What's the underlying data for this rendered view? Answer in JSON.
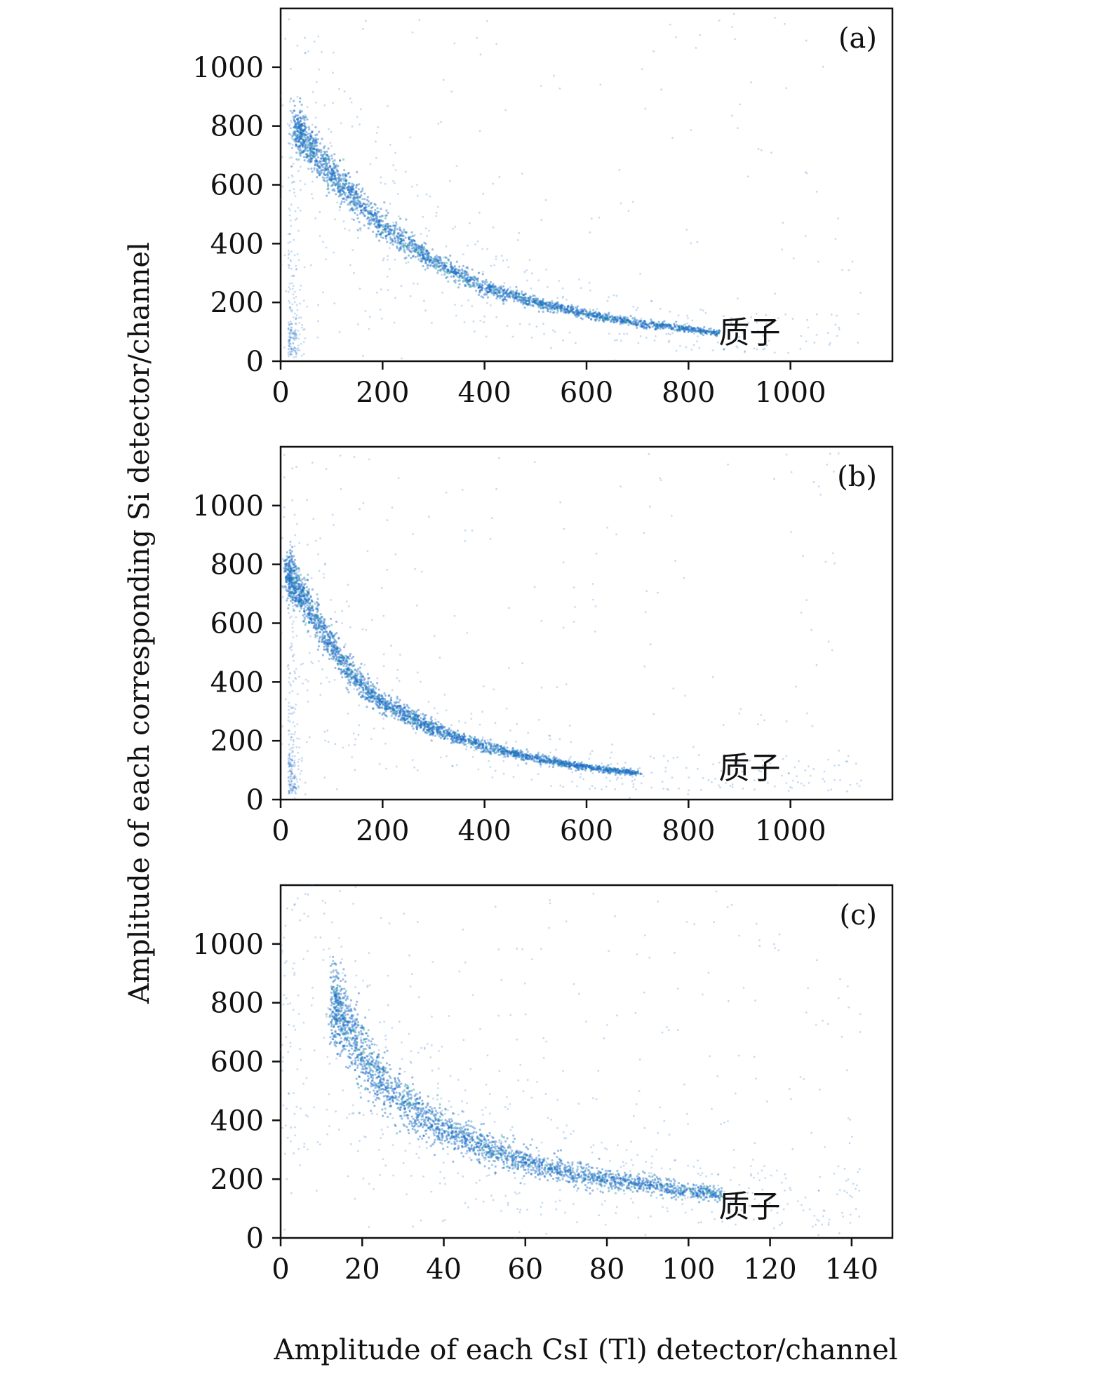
{
  "xlabel": "Amplitude of each CsI (Tl) detector/channel",
  "ylabel": "Amplitude of each corresponding Si detector/channel",
  "point_color": "#1f6fc8",
  "dense_color": "#2aa39a",
  "chart_data": [
    {
      "type": "scatter",
      "panel_label": "(a)",
      "annotation": "质子",
      "annotation_pos": {
        "x": 920,
        "y": 100
      },
      "xlim": [
        0,
        1200
      ],
      "ylim": [
        0,
        1200
      ],
      "xticks": [
        0,
        200,
        400,
        600,
        800,
        1000
      ],
      "yticks": [
        0,
        200,
        400,
        600,
        800,
        1000
      ],
      "band": {
        "label": "质子",
        "x": [
          30,
          60,
          100,
          150,
          200,
          300,
          400,
          500,
          600,
          700,
          800,
          860
        ],
        "y": [
          800,
          720,
          640,
          540,
          460,
          340,
          250,
          200,
          160,
          130,
          110,
          95
        ]
      }
    },
    {
      "type": "scatter",
      "panel_label": "(b)",
      "annotation": "质子",
      "annotation_pos": {
        "x": 920,
        "y": 110
      },
      "xlim": [
        0,
        1200
      ],
      "ylim": [
        0,
        1200
      ],
      "xticks": [
        0,
        200,
        400,
        600,
        800,
        1000
      ],
      "yticks": [
        0,
        200,
        400,
        600,
        800,
        1000
      ],
      "band": {
        "label": "质子",
        "x": [
          15,
          40,
          80,
          120,
          160,
          200,
          300,
          400,
          500,
          600,
          700
        ],
        "y": [
          770,
          700,
          580,
          470,
          390,
          330,
          240,
          180,
          140,
          110,
          90
        ]
      }
    },
    {
      "type": "scatter",
      "panel_label": "(c)",
      "annotation": "质子",
      "annotation_pos": {
        "x": 115,
        "y": 110
      },
      "xlim": [
        0,
        150
      ],
      "ylim": [
        0,
        1200
      ],
      "xticks": [
        0,
        20,
        40,
        60,
        80,
        100,
        120,
        140
      ],
      "yticks": [
        0,
        200,
        400,
        600,
        800,
        1000
      ],
      "band": {
        "label": "质子",
        "x": [
          13,
          18,
          22,
          26,
          30,
          36,
          44,
          52,
          60,
          70,
          80,
          90,
          100,
          108
        ],
        "y": [
          790,
          680,
          580,
          510,
          460,
          400,
          340,
          300,
          260,
          225,
          200,
          180,
          160,
          145
        ]
      }
    }
  ]
}
